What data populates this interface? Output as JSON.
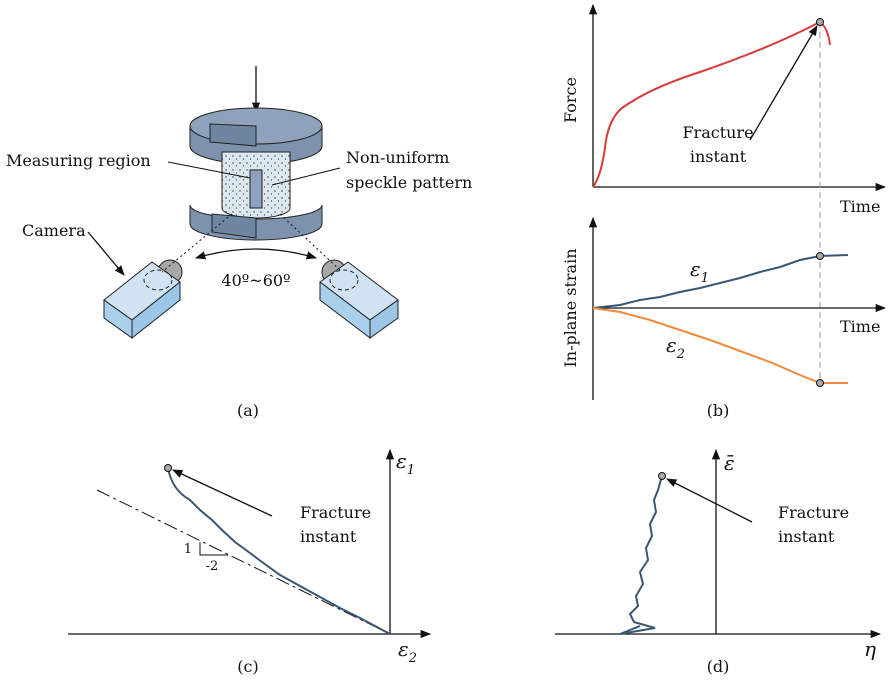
{
  "panel_a": {
    "caption": "(a)",
    "measuring_region": "Measuring region",
    "speckle_line1": "Non-uniform",
    "speckle_line2": "speckle pattern",
    "camera": "Camera",
    "angle": "40º~60º"
  },
  "panel_b": {
    "caption": "(b)",
    "force_axis": "Force",
    "force_time_axis": "Time",
    "strain_axis": "In-plane strain",
    "strain_time_axis": "Time",
    "fracture_line1": "Fracture",
    "fracture_line2": "instant",
    "eps1_symbol": "ε",
    "eps1_sub": "1",
    "eps2_symbol": "ε",
    "eps2_sub": "2"
  },
  "panel_c": {
    "caption": "(c)",
    "y_symbol": "ε",
    "y_sub": "1",
    "x_symbol": "ε",
    "x_sub": "2",
    "slope_rise": "1",
    "slope_run": "-2",
    "fracture_line1": "Fracture",
    "fracture_line2": "instant"
  },
  "panel_d": {
    "caption": "(d)",
    "y_axis": "ε̄",
    "x_axis": "η",
    "fracture_line1": "Fracture",
    "fracture_line2": "instant"
  }
}
